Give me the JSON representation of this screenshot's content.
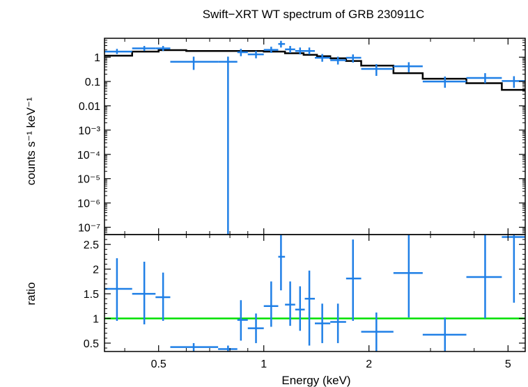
{
  "chart_data": [
    {
      "panel": "spectrum",
      "type": "scatter",
      "title": "Swift−XRT WT spectrum of GRB 230911C",
      "xlabel": "",
      "ylabel": "counts s⁻¹ keV⁻¹",
      "xscale": "log",
      "yscale": "log",
      "xlim": [
        0.35,
        5.6
      ],
      "ylim": [
        5e-08,
        6
      ],
      "yticks": [
        {
          "value": 1,
          "label": "1"
        },
        {
          "value": 0.1,
          "label": "0.1"
        },
        {
          "value": 0.01,
          "label": "0.01"
        },
        {
          "value": 0.001,
          "label": "10⁻³"
        },
        {
          "value": 0.0001,
          "label": "10⁻⁴"
        },
        {
          "value": 1e-05,
          "label": "10⁻⁵"
        },
        {
          "value": 1e-06,
          "label": "10⁻⁶"
        },
        {
          "value": 1e-07,
          "label": "10⁻⁷"
        }
      ],
      "series": [
        {
          "name": "data",
          "color": "#1f7fe6",
          "points": [
            {
              "x": 0.38,
              "xlo": 0.35,
              "xhi": 0.42,
              "y": 1.7,
              "ylo": 1.35,
              "yhi": 2.2
            },
            {
              "x": 0.455,
              "xlo": 0.42,
              "xhi": 0.49,
              "y": 2.3,
              "ylo": 1.8,
              "yhi": 2.9
            },
            {
              "x": 0.515,
              "xlo": 0.49,
              "xhi": 0.54,
              "y": 2.3,
              "ylo": 1.8,
              "yhi": 2.9
            },
            {
              "x": 0.63,
              "xlo": 0.54,
              "xhi": 0.74,
              "y": 0.65,
              "ylo": 0.3,
              "yhi": 1.05
            },
            {
              "x": 0.79,
              "xlo": 0.74,
              "xhi": 0.84,
              "y": 0.65,
              "ylo": 5e-08,
              "yhi": 1.05
            },
            {
              "x": 0.86,
              "xlo": 0.84,
              "xhi": 0.9,
              "y": 1.6,
              "ylo": 1.1,
              "yhi": 2.2
            },
            {
              "x": 0.95,
              "xlo": 0.9,
              "xhi": 1.0,
              "y": 1.3,
              "ylo": 0.9,
              "yhi": 1.8
            },
            {
              "x": 1.05,
              "xlo": 1.0,
              "xhi": 1.1,
              "y": 2.0,
              "ylo": 1.5,
              "yhi": 2.7
            },
            {
              "x": 1.12,
              "xlo": 1.1,
              "xhi": 1.15,
              "y": 3.5,
              "ylo": 2.5,
              "yhi": 4.7
            },
            {
              "x": 1.19,
              "xlo": 1.15,
              "xhi": 1.23,
              "y": 2.1,
              "ylo": 1.5,
              "yhi": 2.9
            },
            {
              "x": 1.27,
              "xlo": 1.23,
              "xhi": 1.31,
              "y": 1.8,
              "ylo": 1.3,
              "yhi": 2.5
            },
            {
              "x": 1.35,
              "xlo": 1.31,
              "xhi": 1.4,
              "y": 1.8,
              "ylo": 1.3,
              "yhi": 2.5
            },
            {
              "x": 1.47,
              "xlo": 1.4,
              "xhi": 1.55,
              "y": 0.95,
              "ylo": 0.65,
              "yhi": 1.35
            },
            {
              "x": 1.63,
              "xlo": 1.55,
              "xhi": 1.72,
              "y": 0.75,
              "ylo": 0.5,
              "yhi": 1.05
            },
            {
              "x": 1.8,
              "xlo": 1.72,
              "xhi": 1.9,
              "y": 0.95,
              "ylo": 0.6,
              "yhi": 1.3
            },
            {
              "x": 2.1,
              "xlo": 1.9,
              "xhi": 2.35,
              "y": 0.33,
              "ylo": 0.17,
              "yhi": 0.52
            },
            {
              "x": 2.6,
              "xlo": 2.35,
              "xhi": 2.85,
              "y": 0.42,
              "ylo": 0.24,
              "yhi": 0.62
            },
            {
              "x": 3.3,
              "xlo": 2.85,
              "xhi": 3.8,
              "y": 0.1,
              "ylo": 0.055,
              "yhi": 0.16
            },
            {
              "x": 4.3,
              "xlo": 3.8,
              "xhi": 4.8,
              "y": 0.14,
              "ylo": 0.085,
              "yhi": 0.22
            },
            {
              "x": 5.2,
              "xlo": 4.8,
              "xhi": 5.6,
              "y": 0.105,
              "ylo": 0.055,
              "yhi": 0.165
            }
          ]
        },
        {
          "name": "model",
          "color": "#000000",
          "type": "step",
          "steps": [
            {
              "x0": 0.35,
              "x1": 0.42,
              "y": 1.15
            },
            {
              "x0": 0.42,
              "x1": 0.5,
              "y": 1.7
            },
            {
              "x0": 0.5,
              "x1": 0.6,
              "y": 1.95
            },
            {
              "x0": 0.6,
              "x1": 0.75,
              "y": 1.8
            },
            {
              "x0": 0.75,
              "x1": 1.0,
              "y": 1.8
            },
            {
              "x0": 1.0,
              "x1": 1.15,
              "y": 1.7
            },
            {
              "x0": 1.15,
              "x1": 1.3,
              "y": 1.45
            },
            {
              "x0": 1.3,
              "x1": 1.42,
              "y": 1.25
            },
            {
              "x0": 1.42,
              "x1": 1.55,
              "y": 1.1
            },
            {
              "x0": 1.55,
              "x1": 1.72,
              "y": 0.9
            },
            {
              "x0": 1.72,
              "x1": 1.9,
              "y": 0.7
            },
            {
              "x0": 1.9,
              "x1": 2.35,
              "y": 0.45
            },
            {
              "x0": 2.35,
              "x1": 2.85,
              "y": 0.22
            },
            {
              "x0": 2.85,
              "x1": 3.8,
              "y": 0.13
            },
            {
              "x0": 3.8,
              "x1": 4.8,
              "y": 0.085
            },
            {
              "x0": 4.8,
              "x1": 5.6,
              "y": 0.045
            }
          ]
        }
      ]
    },
    {
      "panel": "ratio",
      "type": "scatter",
      "xlabel": "Energy (keV)",
      "ylabel": "ratio",
      "xscale": "log",
      "yscale": "linear",
      "xlim": [
        0.35,
        5.6
      ],
      "ylim": [
        0.33,
        2.7
      ],
      "xticks": [
        {
          "value": 0.5,
          "label": "0.5"
        },
        {
          "value": 1,
          "label": "1"
        },
        {
          "value": 2,
          "label": "2"
        },
        {
          "value": 5,
          "label": "5"
        }
      ],
      "yticks": [
        {
          "value": 0.5,
          "label": "0.5"
        },
        {
          "value": 1,
          "label": "1"
        },
        {
          "value": 1.5,
          "label": "1.5"
        },
        {
          "value": 2,
          "label": "2"
        },
        {
          "value": 2.5,
          "label": "2.5"
        }
      ],
      "reference_line": {
        "y": 1,
        "color": "#00e000"
      },
      "series": [
        {
          "name": "ratio",
          "color": "#1f7fe6",
          "points": [
            {
              "x": 0.38,
              "xlo": 0.35,
              "xhi": 0.42,
              "y": 1.6,
              "ylo": 0.95,
              "yhi": 2.22
            },
            {
              "x": 0.455,
              "xlo": 0.42,
              "xhi": 0.49,
              "y": 1.5,
              "ylo": 0.88,
              "yhi": 2.15
            },
            {
              "x": 0.515,
              "xlo": 0.49,
              "xhi": 0.54,
              "y": 1.43,
              "ylo": 0.95,
              "yhi": 1.93
            },
            {
              "x": 0.63,
              "xlo": 0.54,
              "xhi": 0.74,
              "y": 0.42,
              "ylo": 0.33,
              "yhi": 0.5
            },
            {
              "x": 0.79,
              "xlo": 0.74,
              "xhi": 0.84,
              "y": 0.38,
              "ylo": 0.33,
              "yhi": 0.45
            },
            {
              "x": 0.86,
              "xlo": 0.84,
              "xhi": 0.9,
              "y": 0.97,
              "ylo": 0.55,
              "yhi": 1.37
            },
            {
              "x": 0.95,
              "xlo": 0.9,
              "xhi": 1.0,
              "y": 0.8,
              "ylo": 0.5,
              "yhi": 1.1
            },
            {
              "x": 1.05,
              "xlo": 1.0,
              "xhi": 1.1,
              "y": 1.25,
              "ylo": 0.83,
              "yhi": 1.75
            },
            {
              "x": 1.12,
              "xlo": 1.1,
              "xhi": 1.15,
              "y": 2.25,
              "ylo": 1.57,
              "yhi": 2.7
            },
            {
              "x": 1.19,
              "xlo": 1.15,
              "xhi": 1.23,
              "y": 1.28,
              "ylo": 0.85,
              "yhi": 1.75
            },
            {
              "x": 1.27,
              "xlo": 1.23,
              "xhi": 1.31,
              "y": 1.18,
              "ylo": 0.75,
              "yhi": 1.65
            },
            {
              "x": 1.35,
              "xlo": 1.31,
              "xhi": 1.4,
              "y": 1.4,
              "ylo": 0.45,
              "yhi": 1.97
            },
            {
              "x": 1.47,
              "xlo": 1.4,
              "xhi": 1.55,
              "y": 0.9,
              "ylo": 0.5,
              "yhi": 1.3
            },
            {
              "x": 1.63,
              "xlo": 1.55,
              "xhi": 1.72,
              "y": 0.93,
              "ylo": 0.5,
              "yhi": 1.3
            },
            {
              "x": 1.8,
              "xlo": 1.72,
              "xhi": 1.9,
              "y": 1.81,
              "ylo": 0.95,
              "yhi": 2.6
            },
            {
              "x": 2.1,
              "xlo": 1.9,
              "xhi": 2.35,
              "y": 0.73,
              "ylo": 0.33,
              "yhi": 1.12
            },
            {
              "x": 2.6,
              "xlo": 2.35,
              "xhi": 2.85,
              "y": 1.92,
              "ylo": 1.02,
              "yhi": 2.7
            },
            {
              "x": 3.3,
              "xlo": 2.85,
              "xhi": 3.8,
              "y": 0.67,
              "ylo": 0.33,
              "yhi": 1.02
            },
            {
              "x": 4.3,
              "xlo": 3.8,
              "xhi": 4.8,
              "y": 1.84,
              "ylo": 1.0,
              "yhi": 2.7
            },
            {
              "x": 5.2,
              "xlo": 4.8,
              "xhi": 5.6,
              "y": 2.65,
              "ylo": 1.32,
              "yhi": 2.7
            }
          ]
        }
      ]
    }
  ]
}
